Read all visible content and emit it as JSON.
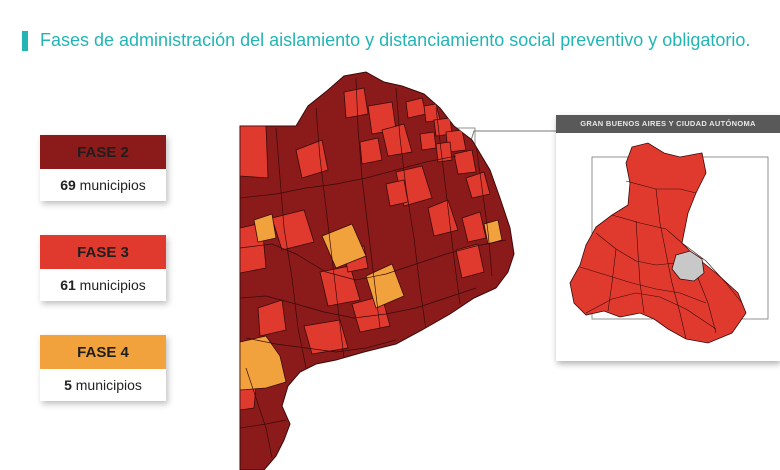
{
  "header": {
    "title": "Fases de administración del aislamiento y distanciamiento social preventivo y obligatorio."
  },
  "legend": [
    {
      "id": "fase2",
      "label": "FASE 2",
      "count": "69",
      "unit": "municipios",
      "color": "#8b1a1a"
    },
    {
      "id": "fase3",
      "label": "FASE 3",
      "count": "61",
      "unit": "municipios",
      "color": "#e03a2f"
    },
    {
      "id": "fase4",
      "label": "FASE 4",
      "count": "5",
      "unit": "municipios",
      "color": "#f2a23c"
    }
  ],
  "inset": {
    "title": "GRAN BUENOS AIRES Y CIUDAD AUTÓNOMA"
  },
  "colors": {
    "accent": "#23b5b5",
    "fase2": "#8b1a1a",
    "fase3": "#e03a2f",
    "fase4": "#f2a23c",
    "border": "#3a0a0a",
    "caba": "#c8c8c8"
  }
}
